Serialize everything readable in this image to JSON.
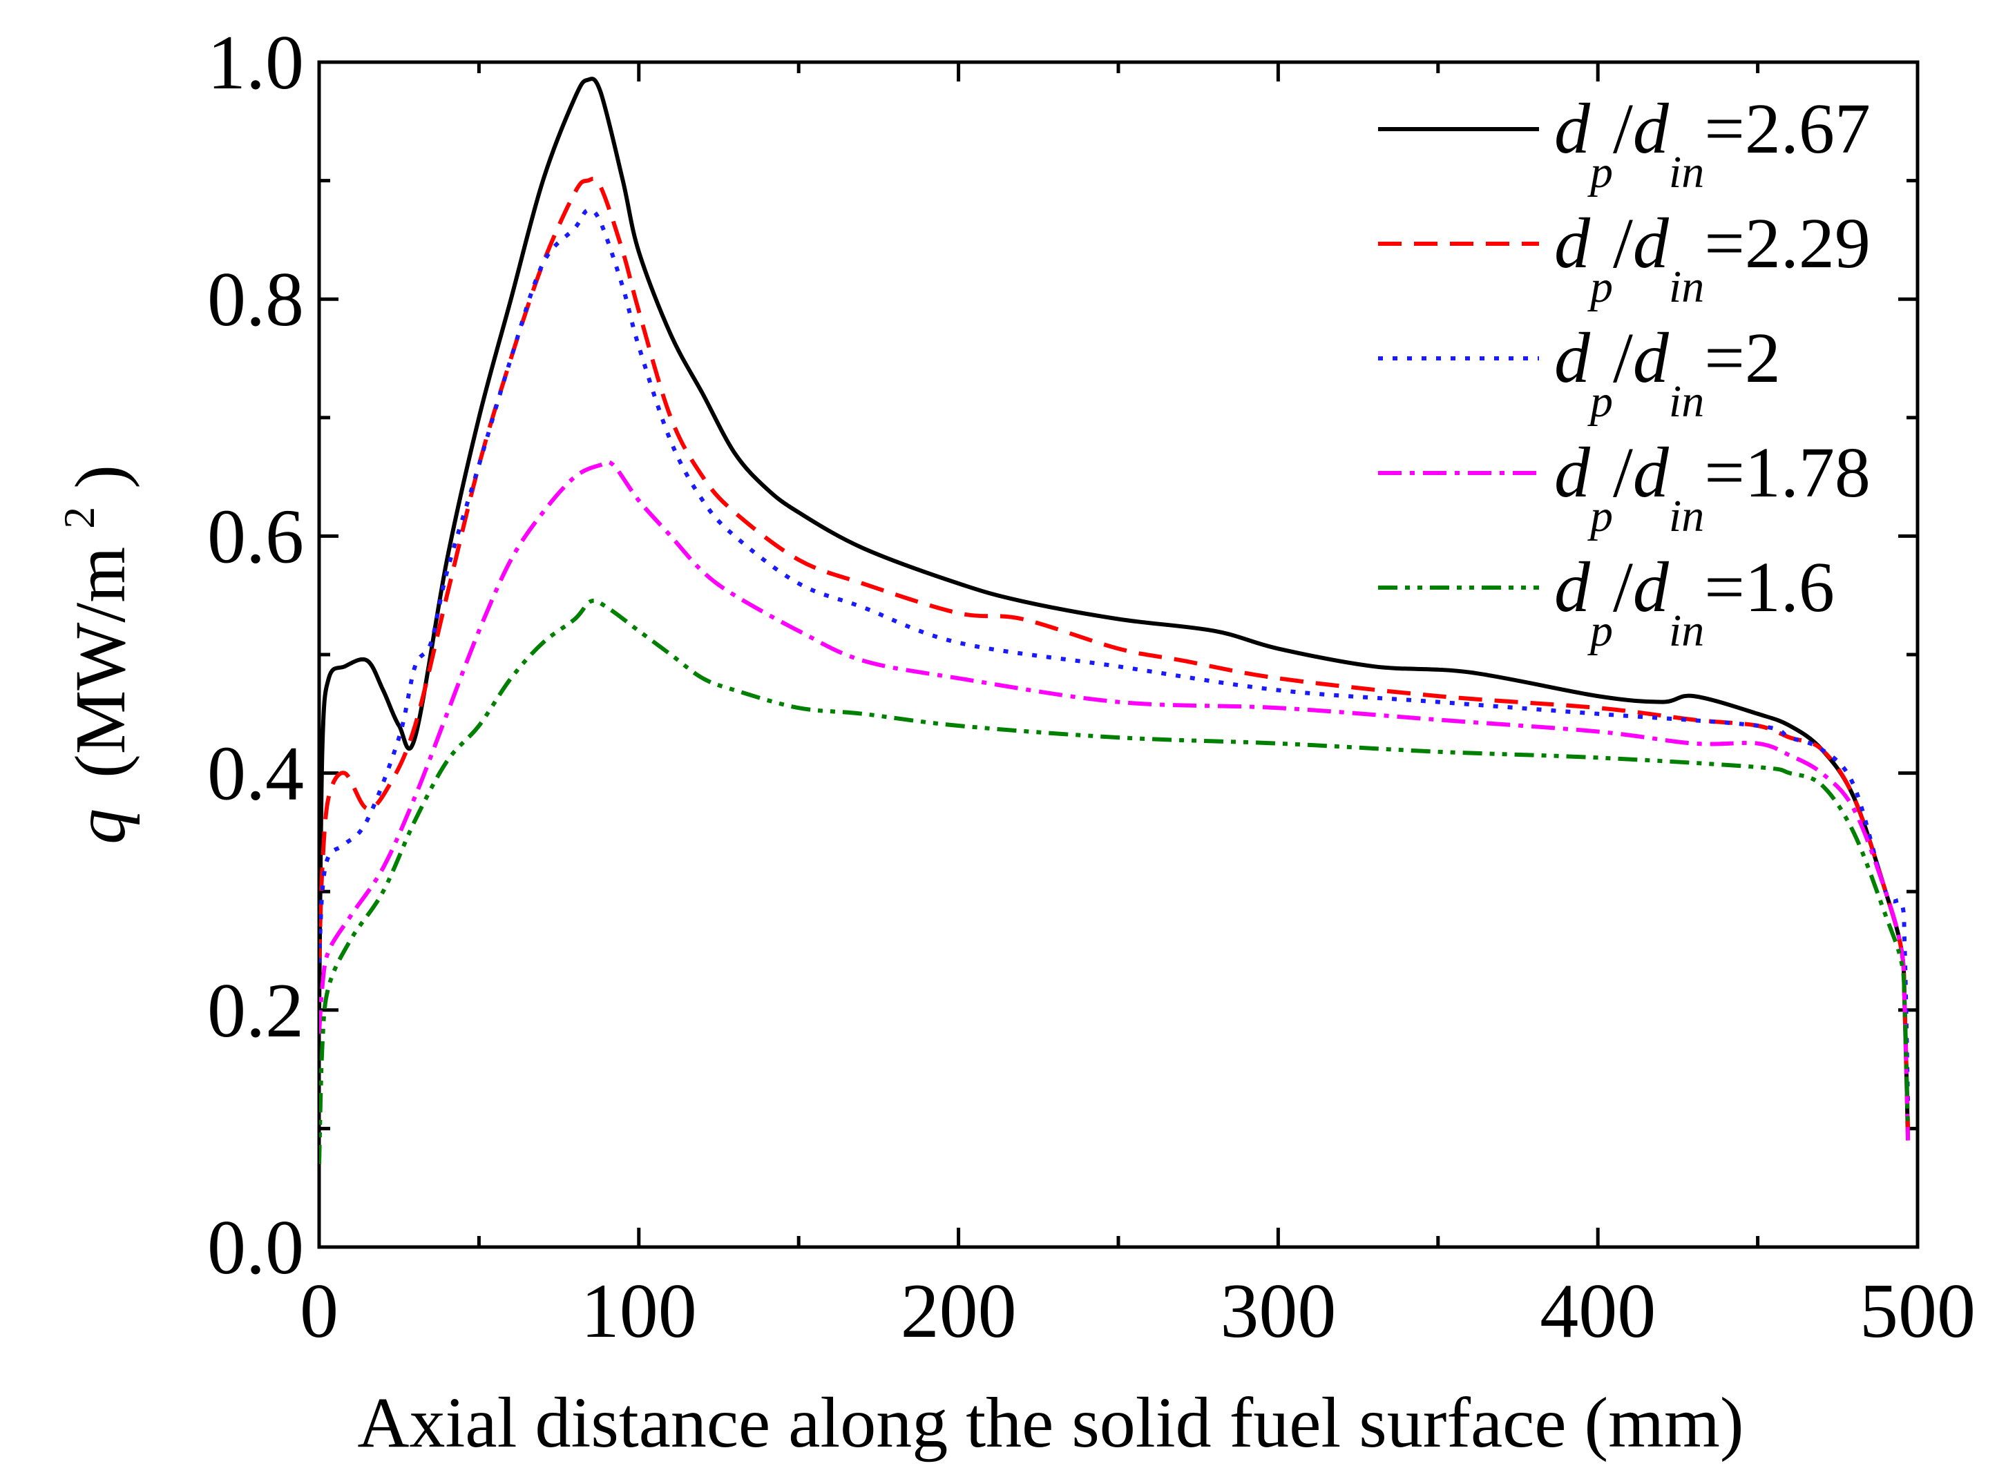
{
  "chart_data": {
    "type": "line",
    "title": "",
    "xlabel": "Axial distance along the solid fuel surface (mm)",
    "ylabel_symbol": "q",
    "ylabel_unit_prefix": "(MW/m",
    "ylabel_unit_exp": "2",
    "ylabel_unit_suffix": ")",
    "xlim": [
      0,
      500
    ],
    "ylim": [
      0,
      1.0
    ],
    "xticks": [
      0,
      100,
      200,
      300,
      400,
      500
    ],
    "xtick_labels": [
      "0",
      "100",
      "200",
      "300",
      "400",
      "500"
    ],
    "yticks": [
      0,
      0.2,
      0.4,
      0.6,
      0.8,
      1.0
    ],
    "ytick_labels": [
      "0.0",
      "0.2",
      "0.4",
      "0.6",
      "0.8",
      "1.0"
    ],
    "grid": false,
    "legend_position": "top-right",
    "series": [
      {
        "name": "d_p/d_in=2.67",
        "legend": {
          "d1": "d",
          "s1": "p",
          "slash": "/",
          "d2": "d",
          "s2": "in",
          "value": "=2.67"
        },
        "color": "#000000",
        "dash": "solid",
        "x": [
          0,
          1,
          3,
          8,
          15,
          20,
          25,
          30,
          40,
          50,
          60,
          70,
          80,
          84,
          88,
          95,
          100,
          110,
          120,
          130,
          140,
          150,
          170,
          200,
          220,
          250,
          280,
          300,
          330,
          360,
          400,
          420,
          430,
          450,
          460,
          470,
          480,
          490,
          495,
          496,
          497
        ],
        "y": [
          0.2,
          0.42,
          0.48,
          0.49,
          0.495,
          0.47,
          0.44,
          0.43,
          0.58,
          0.7,
          0.8,
          0.9,
          0.97,
          0.985,
          0.975,
          0.9,
          0.84,
          0.77,
          0.72,
          0.67,
          0.64,
          0.62,
          0.59,
          0.56,
          0.545,
          0.53,
          0.52,
          0.505,
          0.49,
          0.485,
          0.465,
          0.46,
          0.465,
          0.45,
          0.44,
          0.42,
          0.38,
          0.3,
          0.25,
          0.2,
          0.09
        ]
      },
      {
        "name": "d_p/d_in=2.29",
        "legend": {
          "d1": "d",
          "s1": "p",
          "slash": "/",
          "d2": "d",
          "s2": "in",
          "value": "=2.29"
        },
        "color": "#ff0000",
        "dash": "long-dash",
        "x": [
          0,
          1,
          3,
          8,
          15,
          22,
          30,
          40,
          50,
          60,
          70,
          80,
          84,
          88,
          95,
          100,
          110,
          120,
          130,
          150,
          170,
          200,
          220,
          250,
          270,
          300,
          350,
          400,
          430,
          450,
          460,
          470,
          480,
          490,
          495,
          496,
          497
        ],
        "y": [
          0.24,
          0.32,
          0.38,
          0.4,
          0.37,
          0.39,
          0.44,
          0.55,
          0.66,
          0.75,
          0.83,
          0.89,
          0.9,
          0.895,
          0.84,
          0.79,
          0.7,
          0.65,
          0.62,
          0.58,
          0.56,
          0.535,
          0.53,
          0.505,
          0.495,
          0.48,
          0.465,
          0.455,
          0.445,
          0.44,
          0.43,
          0.42,
          0.38,
          0.3,
          0.25,
          0.2,
          0.1
        ]
      },
      {
        "name": "d_p/d_in=2",
        "legend": {
          "d1": "d",
          "s1": "p",
          "slash": "/",
          "d2": "d",
          "s2": "in",
          "value": "=2"
        },
        "color": "#1a1aff",
        "dash": "dot",
        "x": [
          0,
          1,
          3,
          8,
          15,
          25,
          30,
          35,
          40,
          50,
          60,
          70,
          80,
          84,
          88,
          95,
          100,
          110,
          120,
          130,
          150,
          170,
          200,
          250,
          300,
          350,
          400,
          450,
          460,
          470,
          480,
          490,
          495,
          496,
          497
        ],
        "y": [
          0.24,
          0.3,
          0.33,
          0.34,
          0.36,
          0.43,
          0.49,
          0.51,
          0.57,
          0.66,
          0.75,
          0.83,
          0.86,
          0.875,
          0.865,
          0.81,
          0.76,
          0.68,
          0.63,
          0.6,
          0.56,
          0.54,
          0.51,
          0.49,
          0.47,
          0.46,
          0.45,
          0.44,
          0.43,
          0.42,
          0.39,
          0.3,
          0.29,
          0.25,
          0.12
        ]
      },
      {
        "name": "d_p/d_in=1.78",
        "legend": {
          "d1": "d",
          "s1": "p",
          "slash": "/",
          "d2": "d",
          "s2": "in",
          "value": "=1.78"
        },
        "color": "#ff00ff",
        "dash": "dash-dot",
        "x": [
          0,
          1,
          3,
          10,
          20,
          30,
          40,
          50,
          60,
          70,
          80,
          88,
          92,
          100,
          110,
          120,
          130,
          150,
          170,
          200,
          250,
          300,
          350,
          400,
          430,
          450,
          460,
          470,
          480,
          490,
          495,
          496,
          497
        ],
        "y": [
          0.18,
          0.22,
          0.25,
          0.28,
          0.32,
          0.38,
          0.45,
          0.52,
          0.58,
          0.62,
          0.65,
          0.66,
          0.66,
          0.63,
          0.6,
          0.57,
          0.55,
          0.52,
          0.495,
          0.48,
          0.46,
          0.455,
          0.445,
          0.435,
          0.425,
          0.425,
          0.415,
          0.4,
          0.37,
          0.3,
          0.25,
          0.2,
          0.09
        ]
      },
      {
        "name": "d_p/d_in=1.6",
        "legend": {
          "d1": "d",
          "s1": "p",
          "slash": "/",
          "d2": "d",
          "s2": "in",
          "value": "=1.6"
        },
        "color": "#008000",
        "dash": "dash-dot-dot",
        "x": [
          0,
          1,
          3,
          10,
          20,
          30,
          40,
          50,
          60,
          70,
          80,
          85,
          90,
          100,
          110,
          120,
          130,
          150,
          170,
          200,
          250,
          300,
          350,
          400,
          450,
          460,
          470,
          480,
          490,
          495,
          496,
          497
        ],
        "y": [
          0.07,
          0.17,
          0.22,
          0.26,
          0.3,
          0.36,
          0.41,
          0.44,
          0.48,
          0.51,
          0.53,
          0.545,
          0.54,
          0.52,
          0.5,
          0.48,
          0.47,
          0.455,
          0.45,
          0.44,
          0.43,
          0.425,
          0.418,
          0.413,
          0.405,
          0.4,
          0.39,
          0.35,
          0.28,
          0.24,
          0.2,
          0.1
        ]
      }
    ]
  }
}
